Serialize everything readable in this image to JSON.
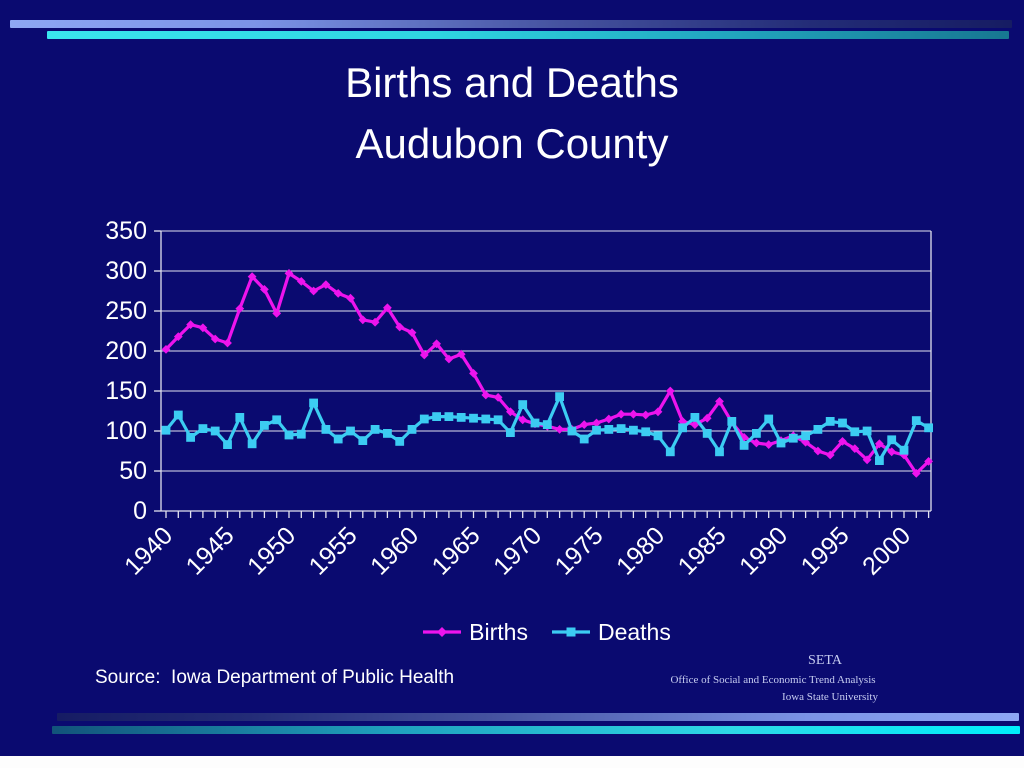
{
  "slide": {
    "title_line1": "Births and Deaths",
    "title_line2": "Audubon County",
    "source_note": "Source:  Iowa Department of Public Health",
    "seta": {
      "org_abbrev": "SETA",
      "org_name": "Office of Social and Economic Trend Analysis",
      "university": "Iowa State University"
    }
  },
  "colors": {
    "background": "#0a0a70",
    "text": "#ffffff",
    "grid": "#e2e2ef",
    "births_line": "#ed14ed",
    "deaths_line": "#3cccf2",
    "seta_text": "#c7cdf1",
    "accent_bar_blue": "#8ea7f4",
    "accent_bar_cyan": "#2ed8e6"
  },
  "chart_data": {
    "type": "line",
    "title": "",
    "xlabel": "",
    "ylabel": "",
    "grid": true,
    "legend_position": "bottom-center",
    "ylim": [
      0,
      350
    ],
    "ytick_step": 50,
    "yticks": [
      0,
      50,
      100,
      150,
      200,
      250,
      300,
      350
    ],
    "xticks_labeled": [
      1940,
      1945,
      1950,
      1955,
      1960,
      1965,
      1970,
      1975,
      1980,
      1985,
      1990,
      1995,
      2000
    ],
    "x": [
      1940,
      1941,
      1942,
      1943,
      1944,
      1945,
      1946,
      1947,
      1948,
      1949,
      1950,
      1951,
      1952,
      1953,
      1954,
      1955,
      1956,
      1957,
      1958,
      1959,
      1960,
      1961,
      1962,
      1963,
      1964,
      1965,
      1966,
      1967,
      1968,
      1969,
      1970,
      1971,
      1972,
      1973,
      1974,
      1975,
      1976,
      1977,
      1978,
      1979,
      1980,
      1981,
      1982,
      1983,
      1984,
      1985,
      1986,
      1987,
      1988,
      1989,
      1990,
      1991,
      1992,
      1993,
      1994,
      1995,
      1996,
      1997,
      1998,
      1999,
      2000,
      2001,
      2002
    ],
    "series": [
      {
        "name": "Births",
        "color": "#ed14ed",
        "marker": "diamond",
        "values": [
          202,
          218,
          233,
          229,
          215,
          210,
          253,
          293,
          277,
          247,
          297,
          287,
          275,
          283,
          272,
          266,
          239,
          236,
          254,
          230,
          223,
          195,
          209,
          190,
          196,
          172,
          145,
          142,
          124,
          114,
          109,
          106,
          102,
          102,
          108,
          110,
          115,
          121,
          121,
          120,
          124,
          150,
          112,
          108,
          116,
          137,
          111,
          92,
          85,
          83,
          88,
          94,
          86,
          75,
          70,
          87,
          78,
          64,
          84,
          74,
          70,
          47,
          62
        ]
      },
      {
        "name": "Deaths",
        "color": "#3cccf2",
        "marker": "square",
        "values": [
          101,
          120,
          92,
          103,
          100,
          83,
          117,
          84,
          107,
          114,
          95,
          96,
          135,
          102,
          90,
          100,
          88,
          102,
          97,
          87,
          102,
          115,
          118,
          118,
          117,
          116,
          115,
          114,
          98,
          133,
          110,
          108,
          143,
          100,
          90,
          101,
          102,
          103,
          101,
          99,
          94,
          74,
          104,
          117,
          97,
          74,
          112,
          82,
          97,
          115,
          85,
          91,
          94,
          102,
          112,
          110,
          99,
          100,
          63,
          89,
          76,
          113,
          104
        ]
      }
    ]
  }
}
